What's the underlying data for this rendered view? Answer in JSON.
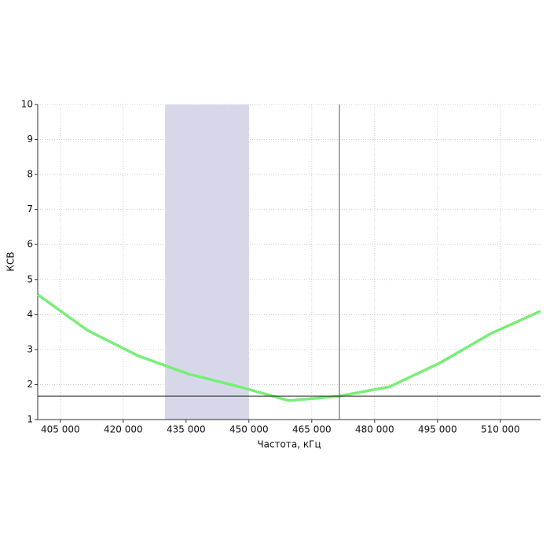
{
  "chart_data": {
    "type": "line",
    "xlabel": "Частота, кГц",
    "ylabel": "КСВ",
    "x": [
      399600,
      411600,
      423600,
      435600,
      447600,
      459600,
      471600,
      483600,
      495600,
      507600,
      519600
    ],
    "series": [
      {
        "color": "#78ee78",
        "values": [
          4.57,
          3.54,
          2.82,
          2.3,
          1.94,
          1.54,
          1.67,
          1.94,
          2.62,
          3.45,
          4.1
        ]
      }
    ],
    "xlim": [
      399600,
      519600
    ],
    "ylim": [
      1,
      10
    ],
    "xticks": [
      {
        "value": 405000,
        "label": "405 000"
      },
      {
        "value": 420000,
        "label": "420 000"
      },
      {
        "value": 435000,
        "label": "435 000"
      },
      {
        "value": 450000,
        "label": "450 000"
      },
      {
        "value": 465000,
        "label": "465 000"
      },
      {
        "value": 480000,
        "label": "480 000"
      },
      {
        "value": 495000,
        "label": "495 000"
      },
      {
        "value": 510000,
        "label": "510 000"
      }
    ],
    "yticks": [
      1,
      2,
      3,
      4,
      5,
      6,
      7,
      8,
      9,
      10
    ],
    "grid": true,
    "highlight_range": [
      430000,
      450000
    ],
    "highlight_color": "#d6d8ea",
    "marker_x": 471600,
    "marker_y": 1.67
  }
}
